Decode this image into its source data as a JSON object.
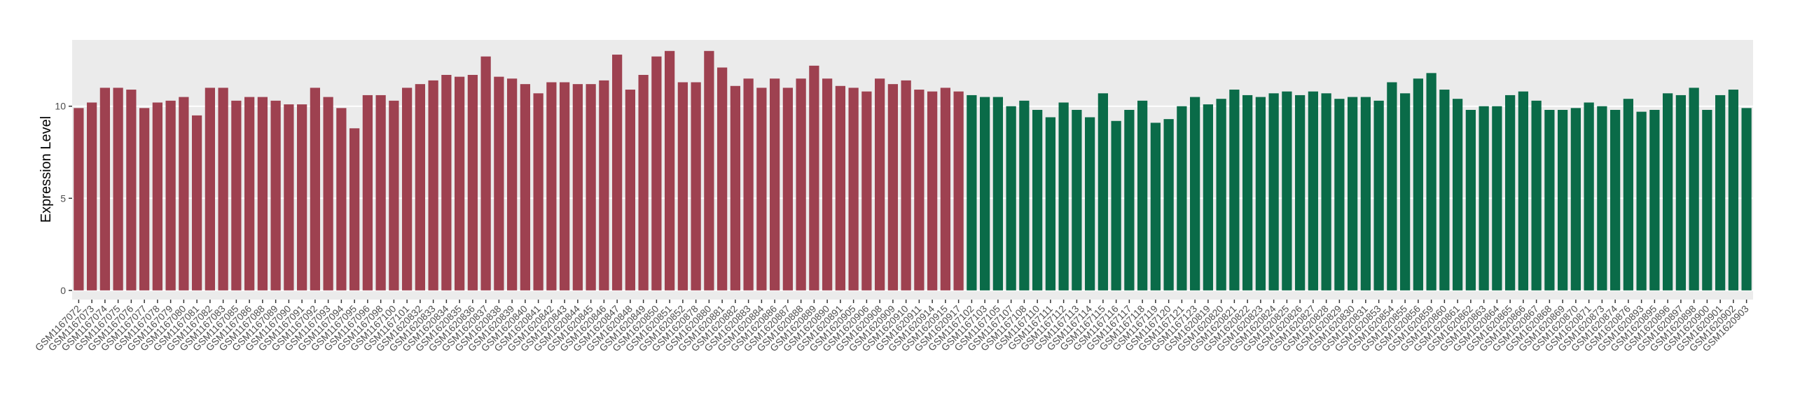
{
  "chart_data": {
    "type": "bar",
    "y_label": "Expression Level",
    "ylim": [
      -0.5,
      13.6
    ],
    "yticks": [
      0,
      5,
      10
    ],
    "grid": true,
    "series": [
      {
        "color": "#9e4150",
        "categories": [
          "GSM1167072",
          "GSM1167073",
          "GSM1167074",
          "GSM1167075",
          "GSM1167076",
          "GSM1167077",
          "GSM1167078",
          "GSM1167079",
          "GSM1167080",
          "GSM1167081",
          "GSM1167082",
          "GSM1167083",
          "GSM1167085",
          "GSM1167086",
          "GSM1167088",
          "GSM1167089",
          "GSM1167090",
          "GSM1167091",
          "GSM1167092",
          "GSM1167093",
          "GSM1167094",
          "GSM1167095",
          "GSM1167096",
          "GSM1167098",
          "GSM1167100",
          "GSM1167101",
          "GSM1620832",
          "GSM1620833",
          "GSM1620834",
          "GSM1620835",
          "GSM1620836",
          "GSM1620837",
          "GSM1620838",
          "GSM1620839",
          "GSM1620840",
          "GSM1620841",
          "GSM1620842",
          "GSM1620843",
          "GSM1620844",
          "GSM1620845",
          "GSM1620846",
          "GSM1620847",
          "GSM1620848",
          "GSM1620849",
          "GSM1620850",
          "GSM1620851",
          "GSM1620852",
          "GSM1620878",
          "GSM1620880",
          "GSM1620881",
          "GSM1620882",
          "GSM1620883",
          "GSM1620884",
          "GSM1620886",
          "GSM1620887",
          "GSM1620888",
          "GSM1620889",
          "GSM1620890",
          "GSM1620891",
          "GSM1620905",
          "GSM1620906",
          "GSM1620908",
          "GSM1620909",
          "GSM1620910",
          "GSM1620911",
          "GSM1620914",
          "GSM1620915",
          "GSM1620917"
        ],
        "values": [
          9.9,
          10.2,
          11.0,
          11.0,
          10.9,
          9.9,
          10.2,
          10.3,
          10.5,
          9.5,
          11.0,
          11.0,
          10.3,
          10.5,
          10.5,
          10.3,
          10.1,
          10.1,
          11.0,
          10.5,
          9.9,
          8.8,
          10.6,
          10.6,
          10.3,
          11.0,
          11.2,
          11.4,
          11.7,
          11.6,
          11.7,
          12.7,
          11.6,
          11.5,
          11.2,
          10.7,
          11.3,
          11.3,
          11.2,
          11.2,
          11.4,
          12.8,
          10.9,
          11.7,
          12.7,
          13.0,
          11.3,
          11.3,
          13.0,
          12.1,
          11.1,
          11.5,
          11.0,
          11.5,
          11.0,
          11.5,
          12.2,
          11.5,
          11.1,
          11.0,
          10.8,
          11.5,
          11.2,
          11.4,
          10.9,
          10.8,
          11.0,
          10.8
        ]
      },
      {
        "color": "#0a6b48",
        "categories": [
          "GSM1167102",
          "GSM1167103",
          "GSM1167105",
          "GSM1167107",
          "GSM1167108",
          "GSM1167110",
          "GSM1167111",
          "GSM1167112",
          "GSM1167113",
          "GSM1167114",
          "GSM1167115",
          "GSM1167116",
          "GSM1167117",
          "GSM1167118",
          "GSM1167119",
          "GSM1167120",
          "GSM1167121",
          "GSM1167123",
          "GSM1620819",
          "GSM1620820",
          "GSM1620821",
          "GSM1620822",
          "GSM1620823",
          "GSM1620824",
          "GSM1620825",
          "GSM1620826",
          "GSM1620827",
          "GSM1620828",
          "GSM1620829",
          "GSM1620830",
          "GSM1620831",
          "GSM1620853",
          "GSM1620854",
          "GSM1620855",
          "GSM1620856",
          "GSM1620859",
          "GSM1620860",
          "GSM1620861",
          "GSM1620862",
          "GSM1620863",
          "GSM1620864",
          "GSM1620865",
          "GSM1620866",
          "GSM1620867",
          "GSM1620868",
          "GSM1620869",
          "GSM1620870",
          "GSM1620871",
          "GSM1620873",
          "GSM1620874",
          "GSM1620876",
          "GSM1620893",
          "GSM1620895",
          "GSM1620896",
          "GSM1620897",
          "GSM1620898",
          "GSM1620900",
          "GSM1620901",
          "GSM1620902",
          "GSM1620903"
        ],
        "values": [
          10.6,
          10.5,
          10.5,
          10.0,
          10.3,
          9.8,
          9.4,
          10.2,
          9.8,
          9.4,
          10.7,
          9.2,
          9.8,
          10.3,
          9.1,
          9.3,
          10.0,
          10.5,
          10.1,
          10.4,
          10.9,
          10.6,
          10.5,
          10.7,
          10.8,
          10.6,
          10.8,
          10.7,
          10.4,
          10.5,
          10.5,
          10.3,
          11.3,
          10.7,
          11.5,
          11.8,
          10.9,
          10.4,
          9.8,
          10.0,
          10.0,
          10.6,
          10.8,
          10.3,
          9.8,
          9.8,
          9.9,
          10.2,
          10.0,
          9.8,
          10.4,
          9.7,
          9.8,
          10.7,
          10.6,
          11.0,
          9.8,
          10.6,
          10.9,
          9.9
        ]
      }
    ]
  }
}
